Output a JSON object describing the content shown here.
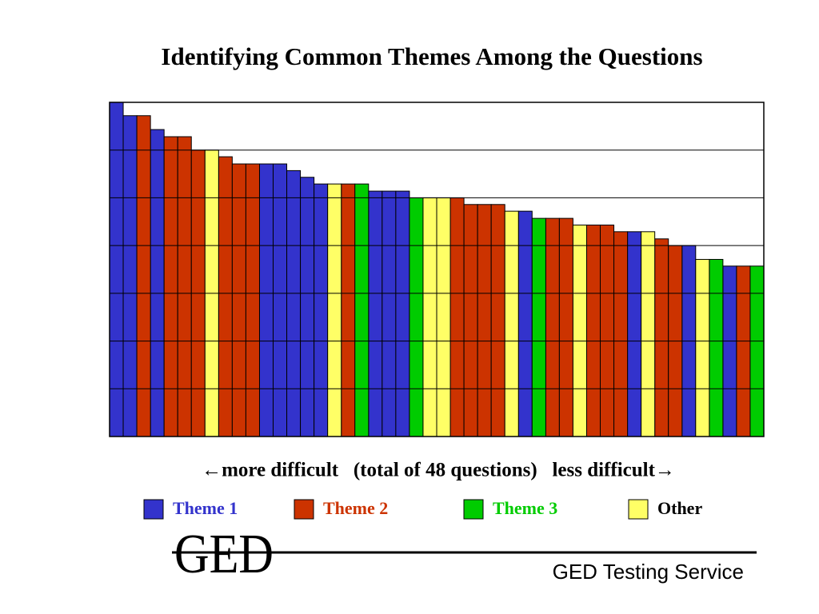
{
  "chart_data": {
    "type": "bar",
    "title": "Identifying Common Themes Among the Questions",
    "x_label": "←more difficult   (total of 48 questions)   less difficult→",
    "ylim": [
      0,
      7
    ],
    "yticks": [
      0,
      1,
      2,
      3,
      4,
      5,
      6,
      7
    ],
    "grid": true,
    "series": [
      {
        "name": "Theme 1",
        "color": "#3333cc",
        "text_color": "#3333cc",
        "values": [
          7.0,
          6.72,
          null,
          6.43,
          null,
          null,
          null,
          null,
          null,
          null,
          null,
          5.71,
          5.71,
          5.57,
          5.43,
          5.29,
          null,
          null,
          null,
          5.14,
          5.14,
          5.14,
          null,
          null,
          null,
          null,
          null,
          null,
          null,
          null,
          4.72,
          null,
          null,
          null,
          null,
          null,
          null,
          null,
          4.29,
          null,
          null,
          null,
          4.0,
          null,
          null,
          3.57,
          null,
          null
        ]
      },
      {
        "name": "Theme 2",
        "color": "#cc3300",
        "text_color": "#cc3300",
        "values": [
          null,
          null,
          6.72,
          null,
          6.28,
          6.28,
          6.0,
          null,
          5.86,
          5.71,
          5.71,
          null,
          null,
          null,
          null,
          null,
          null,
          5.29,
          null,
          null,
          null,
          null,
          null,
          null,
          null,
          5.0,
          4.86,
          4.86,
          4.86,
          null,
          null,
          null,
          4.57,
          4.57,
          null,
          4.43,
          4.43,
          4.29,
          null,
          null,
          4.14,
          4.0,
          null,
          null,
          null,
          null,
          3.57,
          null
        ]
      },
      {
        "name": "Theme 3",
        "color": "#00cc00",
        "text_color": "#00cc00",
        "values": [
          null,
          null,
          null,
          null,
          null,
          null,
          null,
          null,
          null,
          null,
          null,
          null,
          null,
          null,
          null,
          null,
          null,
          null,
          5.29,
          null,
          null,
          null,
          5.0,
          null,
          null,
          null,
          null,
          null,
          null,
          null,
          null,
          4.57,
          null,
          null,
          null,
          null,
          null,
          null,
          null,
          null,
          null,
          null,
          null,
          null,
          3.71,
          null,
          null,
          3.57
        ]
      },
      {
        "name": "Other",
        "color": "#ffff66",
        "text_color": "#000000",
        "values": [
          null,
          null,
          null,
          null,
          null,
          null,
          null,
          6.0,
          null,
          null,
          null,
          null,
          null,
          null,
          null,
          null,
          5.29,
          null,
          null,
          null,
          null,
          null,
          null,
          5.0,
          5.0,
          null,
          null,
          null,
          null,
          4.72,
          null,
          null,
          null,
          null,
          4.43,
          null,
          null,
          null,
          null,
          4.29,
          null,
          null,
          null,
          3.71,
          null,
          null,
          null,
          null
        ]
      }
    ],
    "logo": "GED",
    "footer": "GED Testing Service"
  }
}
